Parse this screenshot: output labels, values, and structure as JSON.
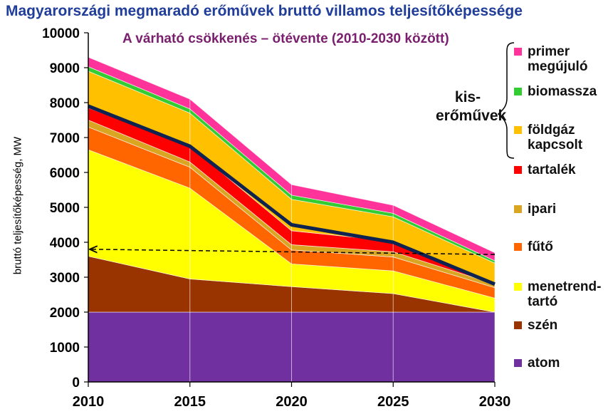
{
  "title": "Magyarországi megmaradó erőművek bruttó villamos teljesítőképessége",
  "subtitle": "A várható csökkenés – ötévente (2010-2030 között)",
  "group_label": "kis-\nerőművek",
  "chart_data": {
    "type": "area",
    "stacked": true,
    "title": "Magyarországi megmaradó erőművek bruttó villamos teljesítőképessége",
    "subtitle": "A várható csökkenés – ötévente (2010-2030 között)",
    "xlabel": "",
    "ylabel": "bruttó teljesítőképesség, MW",
    "x": [
      2010,
      2015,
      2020,
      2025,
      2030
    ],
    "x_tick_labels": [
      "2010",
      "2015",
      "2020",
      "2025",
      "2030"
    ],
    "ylim": [
      0,
      10000
    ],
    "y_ticks": [
      0,
      1000,
      2000,
      3000,
      4000,
      5000,
      6000,
      7000,
      8000,
      9000,
      10000
    ],
    "y_tick_labels": [
      "0",
      "1000",
      "2000",
      "3000",
      "4000",
      "5000",
      "6000",
      "7000",
      "8000",
      "9000",
      "10000"
    ],
    "legend_position": "right",
    "series": [
      {
        "name": "atom",
        "color": "#7030a0",
        "values": [
          2000,
          2000,
          2000,
          2000,
          2000
        ]
      },
      {
        "name": "szén",
        "color": "#993300",
        "values": [
          1600,
          950,
          730,
          530,
          0
        ]
      },
      {
        "name": "menetrend-\ntartó",
        "color": "#ffff00",
        "values": [
          3050,
          2600,
          650,
          650,
          400
        ]
      },
      {
        "name": "fűtő",
        "color": "#ff6600",
        "values": [
          650,
          600,
          400,
          400,
          300
        ]
      },
      {
        "name": "ipari",
        "color": "#daa520",
        "values": [
          200,
          150,
          150,
          150,
          100
        ]
      },
      {
        "name": "tartalék",
        "color": "#ff0000",
        "values": [
          350,
          450,
          400,
          300,
          0
        ]
      },
      {
        "name": "földgáz\nkapcsolt",
        "color": "#ffc000",
        "values": [
          1050,
          950,
          900,
          700,
          600
        ]
      },
      {
        "name": "biomassza",
        "color": "#33cc33",
        "values": [
          130,
          120,
          120,
          100,
          70
        ]
      },
      {
        "name": "primer\nmegújuló",
        "color": "#ff3399",
        "values": [
          270,
          280,
          300,
          230,
          230
        ]
      }
    ],
    "annotations": [
      {
        "type": "line",
        "style": "navy-thick",
        "values": [
          7900,
          6750,
          4500,
          4000,
          2800
        ]
      },
      {
        "type": "dashed-arrow",
        "from": {
          "x": 2030,
          "y": 3650
        },
        "to": {
          "x": 2010,
          "y": 3800
        }
      }
    ],
    "legend": [
      {
        "label": "primer\nmegújuló",
        "color": "#ff3399"
      },
      {
        "label": "biomassza",
        "color": "#33cc33"
      },
      {
        "label": "földgáz\nkapcsolt",
        "color": "#ffc000"
      },
      {
        "label": "tartalék",
        "color": "#ff0000"
      },
      {
        "label": "ipari",
        "color": "#daa520"
      },
      {
        "label": "fűtő",
        "color": "#ff6600"
      },
      {
        "label": "menetrend-\ntartó",
        "color": "#ffff00"
      },
      {
        "label": "szén",
        "color": "#993300"
      },
      {
        "label": "atom",
        "color": "#7030a0"
      }
    ]
  }
}
